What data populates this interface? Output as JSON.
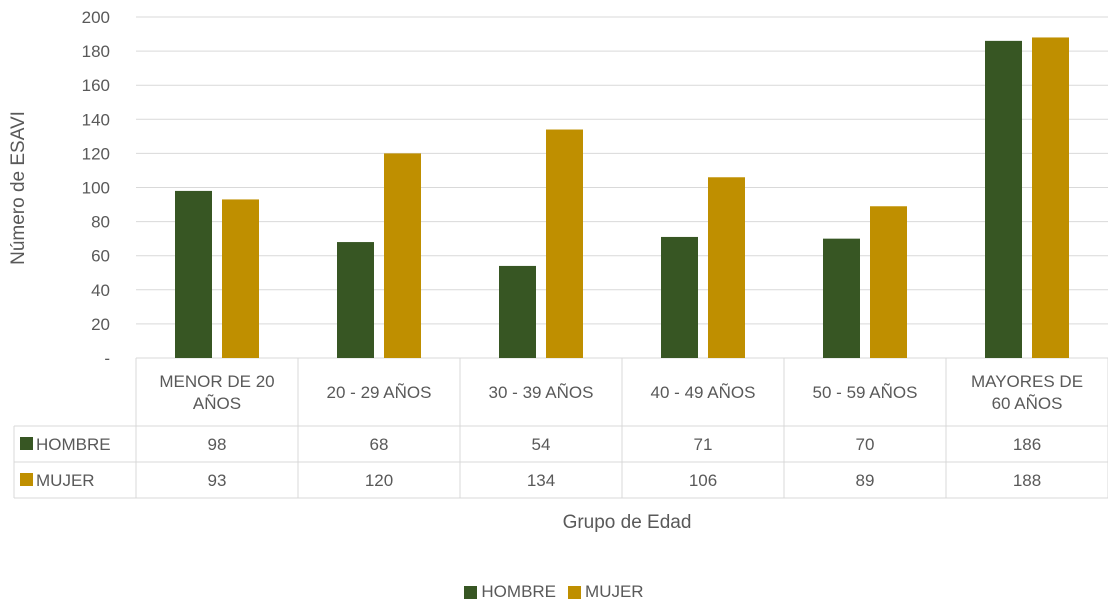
{
  "chart_data": {
    "type": "bar",
    "title": "",
    "xlabel": "Grupo de Edad",
    "ylabel": "Número de ESAVI",
    "ylim": [
      0,
      200
    ],
    "yticks": [
      0,
      20,
      40,
      60,
      80,
      100,
      120,
      140,
      160,
      180,
      200
    ],
    "ytick_labels": [
      "-",
      "20",
      "40",
      "60",
      "80",
      "100",
      "120",
      "140",
      "160",
      "180",
      "200"
    ],
    "grid": true,
    "legend_position": "bottom",
    "data_table": true,
    "categories": [
      [
        "MENOR DE 20",
        "AÑOS"
      ],
      [
        "20 - 29 AÑOS"
      ],
      [
        "30 - 39 AÑOS"
      ],
      [
        "40 - 49 AÑOS"
      ],
      [
        "50 - 59 AÑOS"
      ],
      [
        "MAYORES DE",
        "60 AÑOS"
      ]
    ],
    "series": [
      {
        "name": "HOMBRE",
        "color": "#375623",
        "values": [
          98,
          68,
          54,
          71,
          70,
          186
        ]
      },
      {
        "name": "MUJER",
        "color": "#BF8F00",
        "values": [
          93,
          120,
          134,
          106,
          89,
          188
        ]
      }
    ]
  }
}
